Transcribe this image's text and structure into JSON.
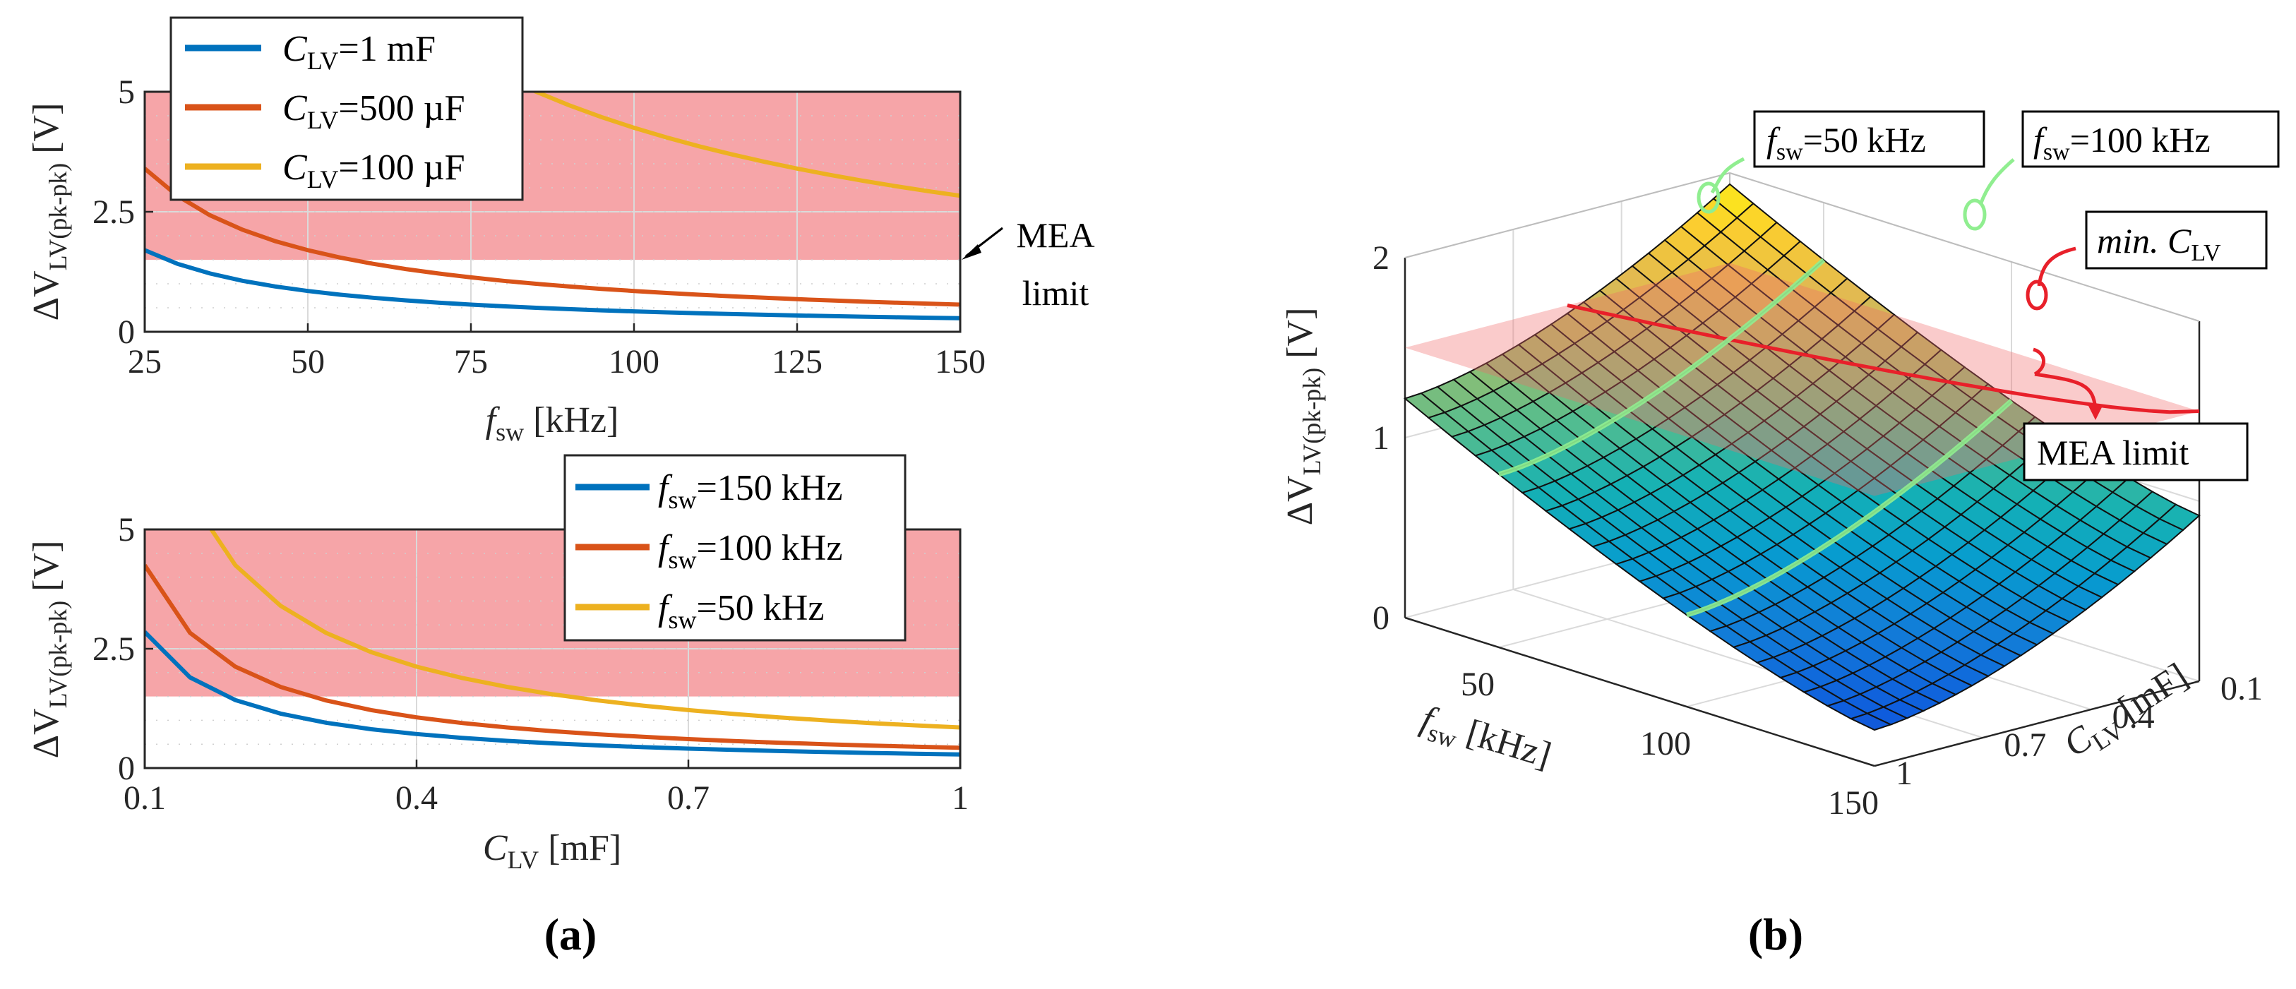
{
  "colors": {
    "blue": "#0072BD",
    "orange": "#D95319",
    "yellow": "#EDB120",
    "mea_band": "#F6A5A8",
    "grid": "#DADADA",
    "axis": "#262626"
  },
  "panel_labels": {
    "a": "(a)",
    "b": "(b)"
  },
  "chart_data": [
    {
      "id": "a-top",
      "type": "line",
      "xlabel": {
        "sym": "f",
        "sub": "sw",
        "unit": " [kHz]"
      },
      "ylabel": {
        "pre": "ΔV",
        "sub": "LV(pk-pk)",
        "unit": " [V]"
      },
      "xlim": [
        25,
        150
      ],
      "ylim": [
        0,
        5
      ],
      "xticks": [
        25,
        50,
        75,
        100,
        125,
        150
      ],
      "yticks": [
        0,
        2.5,
        5
      ],
      "ytick_labels": [
        "0",
        "2.5",
        "5"
      ],
      "mea_band": [
        1.5,
        5
      ],
      "annotation": {
        "line1": "MEA",
        "line2": "limit"
      },
      "legend_location": "top-left",
      "x": [
        25,
        30,
        35,
        40,
        45,
        50,
        55,
        60,
        65,
        70,
        75,
        80,
        85,
        90,
        95,
        100,
        105,
        110,
        115,
        120,
        125,
        130,
        135,
        140,
        145,
        150
      ],
      "series": [
        {
          "name": "C_LV=1 mF",
          "label_sym": "C",
          "label_sub": "LV",
          "label_val": "=1 mF",
          "color": "#0072BD",
          "k": 42.5
        },
        {
          "name": "C_LV=500 µF",
          "label_sym": "C",
          "label_sub": "LV",
          "label_val": "=500 µF",
          "color": "#D95319",
          "k": 85
        },
        {
          "name": "C_LV=100 µF",
          "label_sym": "C",
          "label_sub": "LV",
          "label_val": "=100 µF",
          "color": "#EDB120",
          "k": 425
        }
      ]
    },
    {
      "id": "a-bottom",
      "type": "line",
      "xlabel": {
        "sym": "C",
        "sub": "LV",
        "unit": " [mF]"
      },
      "ylabel": {
        "pre": "ΔV",
        "sub": "LV(pk-pk)",
        "unit": " [V]"
      },
      "xlim": [
        0.1,
        1
      ],
      "ylim": [
        0,
        5
      ],
      "xticks": [
        0.1,
        0.4,
        0.7,
        1
      ],
      "xtick_labels": [
        "0.1",
        "0.4",
        "0.7",
        "1"
      ],
      "yticks": [
        0,
        2.5,
        5
      ],
      "ytick_labels": [
        "0",
        "2.5",
        "5"
      ],
      "mea_band": [
        1.5,
        5
      ],
      "legend_location": "top-right",
      "x": [
        0.1,
        0.15,
        0.2,
        0.25,
        0.3,
        0.35,
        0.4,
        0.45,
        0.5,
        0.55,
        0.6,
        0.65,
        0.7,
        0.75,
        0.8,
        0.85,
        0.9,
        0.95,
        1.0
      ],
      "series": [
        {
          "name": "f_sw=150 kHz",
          "label_sym": "f",
          "label_sub": "sw",
          "label_val": "=150 kHz",
          "color": "#0072BD",
          "k": 285
        },
        {
          "name": "f_sw=100 kHz",
          "label_sym": "f",
          "label_sub": "sw",
          "label_val": "=100 kHz",
          "color": "#D95319",
          "k": 425
        },
        {
          "name": "f_sw=50 kHz",
          "label_sym": "f",
          "label_sub": "sw",
          "label_val": "=50 kHz",
          "color": "#EDB120",
          "k": 850
        }
      ]
    },
    {
      "id": "b",
      "type": "surface",
      "zlabel": {
        "pre": "ΔV",
        "sub": "LV(pk-pk)",
        "unit": " [V]"
      },
      "xlabel": {
        "sym": "f",
        "sub": "sw",
        "unit": " [kHz]"
      },
      "ylabel": {
        "sym": "C",
        "sub": "LV",
        "unit": " [mF]"
      },
      "xlim": [
        25,
        150
      ],
      "ylim": [
        0.1,
        1
      ],
      "zlim": [
        0,
        2
      ],
      "xticks": [
        50,
        100,
        150
      ],
      "yticks": [
        0.1,
        0.4,
        0.7,
        1
      ],
      "ytick_labels": [
        "0.1",
        "0.4",
        "0.7",
        "1"
      ],
      "zticks": [
        0,
        1,
        2
      ],
      "mea_limit": 1.5,
      "annotations": {
        "f50": {
          "sym": "f",
          "sub": "sw",
          "val": "=50 kHz"
        },
        "f100": {
          "sym": "f",
          "sub": "sw",
          "val": "=100 kHz"
        },
        "minC": {
          "pre": "min.",
          "sym": " C",
          "sub": "LV"
        },
        "mea": "MEA limit"
      }
    }
  ]
}
